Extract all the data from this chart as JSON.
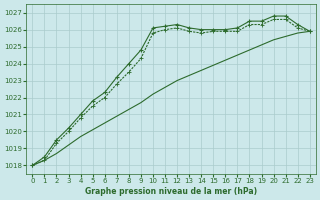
{
  "title": "Graphe pression niveau de la mer (hPa)",
  "bg_color": "#cce8ea",
  "grid_color": "#aacccc",
  "line_color": "#2d6b2d",
  "xlim": [
    -0.5,
    23.5
  ],
  "ylim": [
    1017.5,
    1027.5
  ],
  "yticks": [
    1018,
    1019,
    1020,
    1021,
    1022,
    1023,
    1024,
    1025,
    1026,
    1027
  ],
  "xticks": [
    0,
    1,
    2,
    3,
    4,
    5,
    6,
    7,
    8,
    9,
    10,
    11,
    12,
    13,
    14,
    15,
    16,
    17,
    18,
    19,
    20,
    21,
    22,
    23
  ],
  "series_top": {
    "x": [
      0,
      1,
      2,
      3,
      4,
      5,
      6,
      7,
      8,
      9,
      10,
      11,
      12,
      13,
      14,
      15,
      16,
      17,
      18,
      19,
      20,
      21,
      22,
      23
    ],
    "y": [
      1018.0,
      1018.5,
      1019.5,
      1020.2,
      1021.0,
      1021.8,
      1022.3,
      1023.2,
      1024.0,
      1024.8,
      1026.1,
      1026.2,
      1026.3,
      1026.1,
      1026.0,
      1026.0,
      1026.0,
      1026.1,
      1026.5,
      1026.5,
      1026.8,
      1026.8,
      1026.3,
      1025.9
    ]
  },
  "series_mid": {
    "x": [
      0,
      1,
      2,
      3,
      4,
      5,
      6,
      7,
      8,
      9,
      10,
      11,
      12,
      13,
      14,
      15,
      16,
      17,
      18,
      19,
      20,
      21,
      22,
      23
    ],
    "y": [
      1018.0,
      1018.3,
      1019.3,
      1020.0,
      1020.8,
      1021.5,
      1022.0,
      1022.8,
      1023.5,
      1024.3,
      1025.8,
      1026.0,
      1026.1,
      1025.9,
      1025.8,
      1025.9,
      1025.9,
      1025.9,
      1026.3,
      1026.3,
      1026.6,
      1026.6,
      1026.1,
      1025.9
    ]
  },
  "series_low": {
    "x": [
      0,
      1,
      2,
      3,
      4,
      5,
      6,
      7,
      8,
      9,
      10,
      11,
      12,
      13,
      14,
      15,
      16,
      17,
      18,
      19,
      20,
      21,
      22,
      23
    ],
    "y": [
      1018.0,
      1018.3,
      1018.7,
      1019.2,
      1019.7,
      1020.1,
      1020.5,
      1020.9,
      1021.3,
      1021.7,
      1022.2,
      1022.6,
      1023.0,
      1023.3,
      1023.6,
      1023.9,
      1024.2,
      1024.5,
      1024.8,
      1025.1,
      1025.4,
      1025.6,
      1025.8,
      1025.9
    ]
  }
}
